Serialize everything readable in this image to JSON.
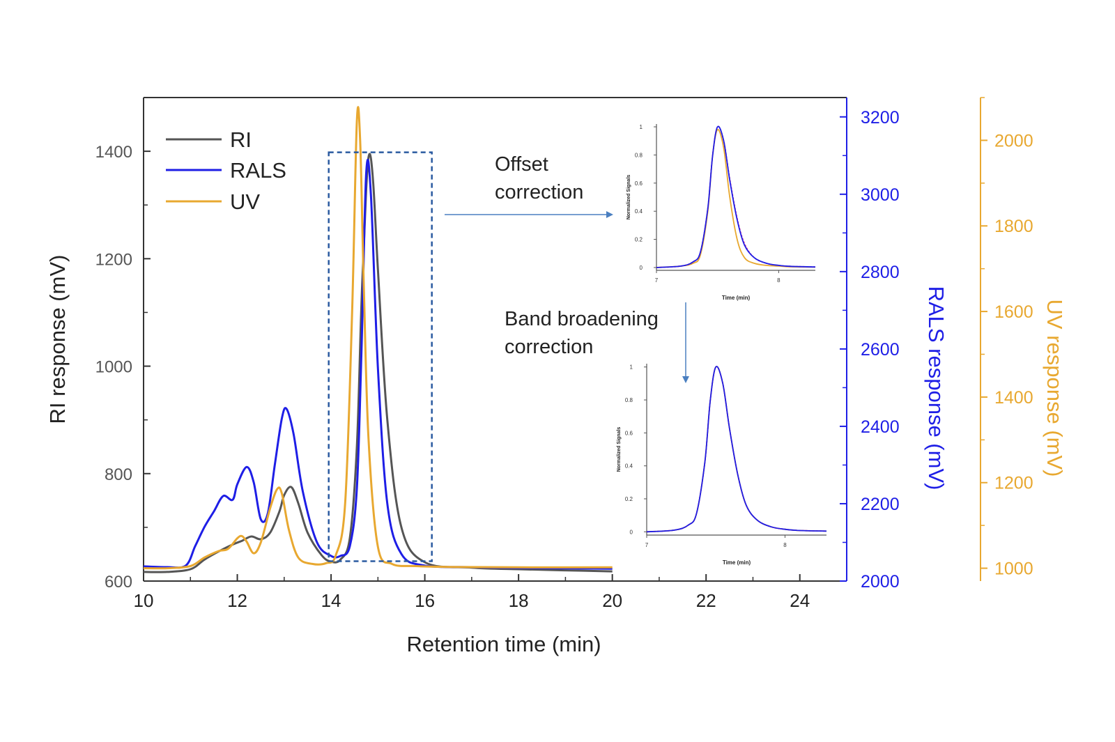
{
  "chart_data": [
    {
      "type": "line",
      "title": "",
      "xlabel": "Retention time (min)",
      "ylabel_left": "RI response (mV)",
      "ylabel_right1": "RALS response (mV)",
      "ylabel_right2": "UV response (mV)",
      "xlim": [
        10,
        25
      ],
      "xticks": [
        10,
        12,
        14,
        16,
        18,
        20,
        22,
        24
      ],
      "ylim_left": [
        600,
        1500
      ],
      "yticks_left": [
        600,
        800,
        1000,
        1200,
        1400
      ],
      "ylim_right1": [
        2000,
        3250
      ],
      "yticks_right1": [
        2000,
        2200,
        2400,
        2600,
        2800,
        3000,
        3200
      ],
      "ylim_right2": [
        970,
        2100
      ],
      "yticks_right2": [
        1000,
        1200,
        1400,
        1600,
        1800,
        2000
      ],
      "grid": false,
      "legend_position": "top-left",
      "colors": {
        "RI": "#555555",
        "RALS": "#1e1ee6",
        "UV": "#e8a830",
        "right1_axis": "#1e1ee6",
        "right2_axis": "#e8a830",
        "box": "#2a5aa0",
        "arrow": "#4a7fc0"
      },
      "series": [
        {
          "name": "RI",
          "axis": "left",
          "x": [
            10,
            10.5,
            11,
            11.3,
            11.6,
            11.9,
            12.1,
            12.3,
            12.5,
            12.7,
            12.9,
            13.0,
            13.15,
            13.3,
            13.5,
            13.8,
            14.0,
            14.2,
            14.4,
            14.55,
            14.65,
            14.75,
            14.82,
            14.9,
            15.0,
            15.2,
            15.5,
            16.0,
            17.0,
            18.0,
            19.0,
            20.0
          ],
          "y": [
            617,
            617,
            622,
            640,
            655,
            668,
            675,
            683,
            678,
            690,
            730,
            760,
            775,
            745,
            690,
            648,
            636,
            640,
            680,
            850,
            1120,
            1330,
            1395,
            1340,
            1180,
            900,
            700,
            635,
            625,
            622,
            620,
            618
          ]
        },
        {
          "name": "RALS",
          "axis": "right1",
          "x": [
            10,
            10.5,
            10.9,
            11.1,
            11.3,
            11.5,
            11.7,
            11.9,
            12.0,
            12.2,
            12.35,
            12.5,
            12.65,
            12.8,
            12.95,
            13.05,
            13.2,
            13.4,
            13.7,
            14.0,
            14.2,
            14.4,
            14.55,
            14.65,
            14.75,
            14.85,
            15.0,
            15.2,
            15.5,
            16.0,
            17.0,
            18.0,
            20.0
          ],
          "y": [
            2038,
            2036,
            2040,
            2090,
            2140,
            2180,
            2220,
            2210,
            2250,
            2295,
            2255,
            2160,
            2175,
            2300,
            2420,
            2445,
            2380,
            2230,
            2100,
            2065,
            2065,
            2090,
            2240,
            2600,
            3055,
            3000,
            2550,
            2200,
            2070,
            2040,
            2036,
            2034,
            2032
          ]
        },
        {
          "name": "UV",
          "axis": "right2",
          "x": [
            10,
            10.5,
            11,
            11.3,
            11.6,
            11.8,
            12.0,
            12.1,
            12.2,
            12.35,
            12.5,
            12.7,
            12.85,
            12.95,
            13.1,
            13.3,
            13.6,
            13.9,
            14.1,
            14.3,
            14.45,
            14.55,
            14.62,
            14.7,
            14.8,
            15.0,
            15.3,
            15.8,
            16.5,
            18.0,
            20.0
          ],
          "y": [
            1000,
            1000,
            1005,
            1025,
            1040,
            1045,
            1070,
            1075,
            1062,
            1035,
            1060,
            1140,
            1185,
            1175,
            1090,
            1025,
            1010,
            1012,
            1030,
            1150,
            1600,
            2045,
            2000,
            1650,
            1300,
            1050,
            1010,
            1005,
            1003,
            1002,
            1002
          ]
        }
      ],
      "annotations": [
        "Offset correction",
        "Band broadening correction"
      ]
    },
    {
      "type": "line",
      "title": "",
      "xlabel": "Time (min)",
      "ylabel": "Normalized Signals",
      "xlim": [
        7,
        8.3
      ],
      "xticks": [
        7,
        8
      ],
      "ylim": [
        -0.02,
        1.02
      ],
      "yticks": [
        0,
        0.2,
        0.4,
        0.6,
        0.8,
        1
      ],
      "series": [
        {
          "name": "",
          "color": "#e8a830",
          "x": [
            7.0,
            7.2,
            7.3,
            7.36,
            7.42,
            7.46,
            7.5,
            7.55,
            7.6,
            7.66,
            7.72,
            7.8,
            7.9,
            8.0,
            8.1,
            8.3
          ],
          "y": [
            0.0,
            0.01,
            0.03,
            0.09,
            0.4,
            0.8,
            0.98,
            0.85,
            0.5,
            0.2,
            0.07,
            0.03,
            0.015,
            0.01,
            0.005,
            0.003
          ]
        },
        {
          "name": "",
          "color": "#e83a8a",
          "x": [
            7.0,
            7.2,
            7.3,
            7.36,
            7.42,
            7.46,
            7.5,
            7.55,
            7.6,
            7.66,
            7.72,
            7.8,
            7.9,
            8.0,
            8.1,
            8.3
          ],
          "y": [
            0.0,
            0.01,
            0.04,
            0.11,
            0.42,
            0.8,
            1.0,
            0.9,
            0.63,
            0.35,
            0.17,
            0.07,
            0.03,
            0.015,
            0.008,
            0.004
          ]
        },
        {
          "name": "",
          "color": "#1e1ee6",
          "x": [
            7.0,
            7.2,
            7.3,
            7.36,
            7.42,
            7.46,
            7.5,
            7.55,
            7.6,
            7.66,
            7.72,
            7.8,
            7.9,
            8.0,
            8.1,
            8.3
          ],
          "y": [
            0.0,
            0.01,
            0.04,
            0.11,
            0.42,
            0.8,
            1.0,
            0.9,
            0.62,
            0.34,
            0.16,
            0.07,
            0.03,
            0.015,
            0.008,
            0.004
          ]
        }
      ]
    },
    {
      "type": "line",
      "title": "",
      "xlabel": "Time (min)",
      "ylabel": "Normalized Signals",
      "xlim": [
        7,
        8.3
      ],
      "xticks": [
        7,
        8
      ],
      "ylim": [
        -0.02,
        1.02
      ],
      "yticks": [
        0,
        0.2,
        0.4,
        0.6,
        0.8,
        1
      ],
      "series": [
        {
          "name": "",
          "color": "#e8a830",
          "x": [
            7.0,
            7.2,
            7.3,
            7.36,
            7.42,
            7.46,
            7.5,
            7.55,
            7.6,
            7.66,
            7.72,
            7.8,
            7.9,
            8.0,
            8.1,
            8.3
          ],
          "y": [
            0.0,
            0.01,
            0.04,
            0.11,
            0.42,
            0.8,
            1.0,
            0.9,
            0.62,
            0.34,
            0.16,
            0.07,
            0.03,
            0.015,
            0.008,
            0.004
          ]
        },
        {
          "name": "",
          "color": "#e83a8a",
          "x": [
            7.0,
            7.2,
            7.3,
            7.36,
            7.42,
            7.46,
            7.5,
            7.55,
            7.6,
            7.66,
            7.72,
            7.8,
            7.9,
            8.0,
            8.1,
            8.3
          ],
          "y": [
            0.0,
            0.01,
            0.04,
            0.11,
            0.42,
            0.8,
            1.0,
            0.9,
            0.62,
            0.34,
            0.16,
            0.07,
            0.03,
            0.015,
            0.008,
            0.004
          ]
        },
        {
          "name": "",
          "color": "#1e1ee6",
          "x": [
            7.0,
            7.2,
            7.3,
            7.36,
            7.42,
            7.46,
            7.5,
            7.55,
            7.6,
            7.66,
            7.72,
            7.8,
            7.9,
            8.0,
            8.1,
            8.3
          ],
          "y": [
            0.0,
            0.01,
            0.04,
            0.11,
            0.42,
            0.8,
            1.0,
            0.9,
            0.62,
            0.34,
            0.16,
            0.07,
            0.03,
            0.015,
            0.008,
            0.004
          ]
        }
      ]
    }
  ]
}
